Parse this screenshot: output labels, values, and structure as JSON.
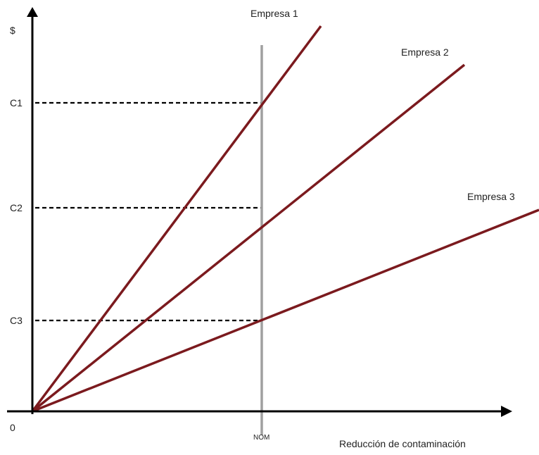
{
  "diagram": {
    "y_axis_label": "$",
    "x_axis_label": "Reducción de contaminación",
    "origin_label": "0",
    "nom_label": "NOM",
    "levels": [
      {
        "label": "C1"
      },
      {
        "label": "C2"
      },
      {
        "label": "C3"
      }
    ],
    "lines": [
      {
        "label": "Empresa 1"
      },
      {
        "label": "Empresa 2"
      },
      {
        "label": "Empresa 3"
      }
    ],
    "colors": {
      "lines": "#7b1a1e",
      "axes": "#000000",
      "nom_line": "#a0a0a0",
      "guides": "#000000"
    }
  }
}
